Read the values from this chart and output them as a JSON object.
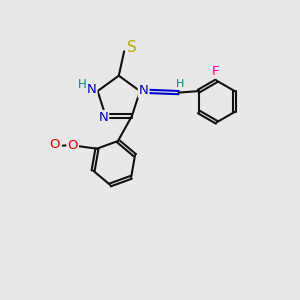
{
  "bg": "#e8e8e8",
  "bc": "#111111",
  "nc": "#0000cc",
  "sc": "#bbaa00",
  "oc": "#dd0000",
  "fc": "#ee00aa",
  "hc": "#008888",
  "lw": 1.5,
  "dbo": 0.06,
  "fs": 9.5,
  "xlim": [
    0,
    10
  ],
  "ylim": [
    0,
    10
  ]
}
